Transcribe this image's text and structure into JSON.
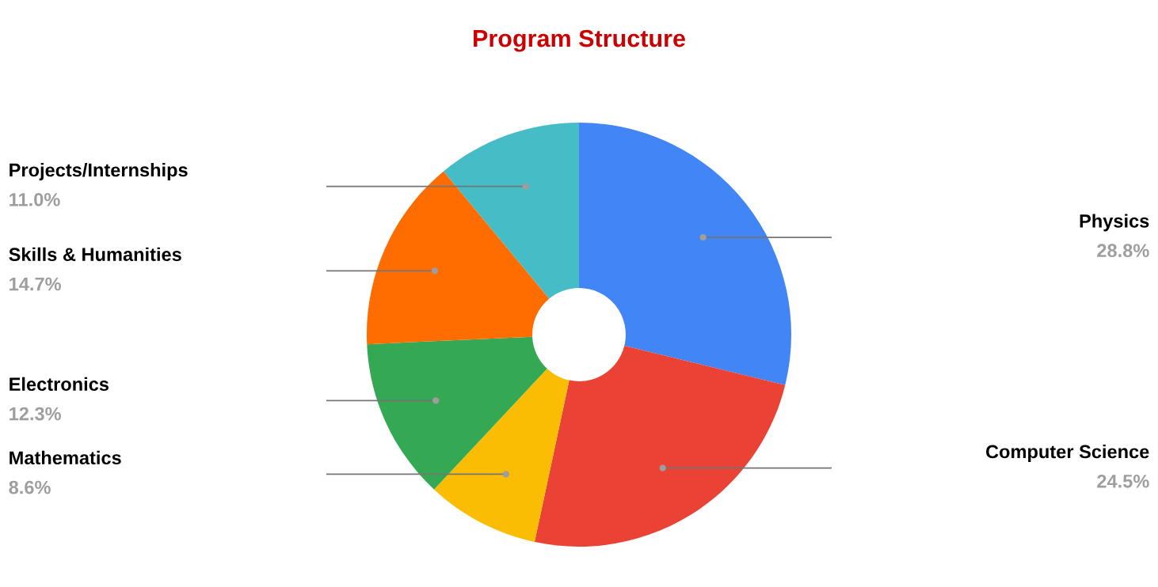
{
  "chart_data": {
    "type": "donut",
    "title": "Program Structure",
    "categories": [
      "Physics",
      "Computer Science",
      "Mathematics",
      "Electronics",
      "Skills & Humanities",
      "Projects/Internships"
    ],
    "values": [
      28.8,
      24.5,
      8.6,
      12.3,
      14.7,
      11.0
    ],
    "colors": [
      "#4285f4",
      "#ea4335",
      "#fbbc04",
      "#34a853",
      "#ff6d01",
      "#46bdc6"
    ],
    "value_labels": [
      "28.8%",
      "24.5%",
      "8.6%",
      "12.3%",
      "14.7%",
      "11.0%"
    ]
  }
}
